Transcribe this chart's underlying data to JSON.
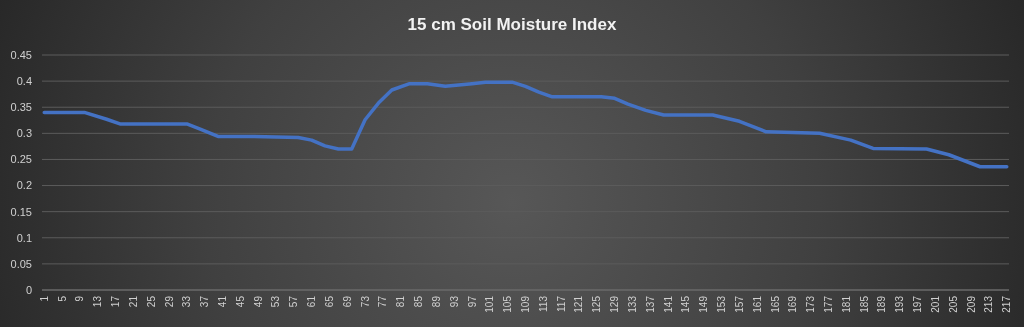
{
  "chart_data": {
    "type": "line",
    "title": "15 cm Soil Moisture Index",
    "x": [
      1,
      10,
      15,
      18,
      33,
      36,
      40,
      48,
      58,
      61,
      64,
      67,
      70,
      73,
      76,
      79,
      83,
      87,
      91,
      97,
      100,
      106,
      109,
      112,
      115,
      126,
      129,
      132,
      136,
      140,
      151,
      157,
      163,
      175,
      182,
      187,
      199,
      204,
      211,
      217
    ],
    "series": [
      {
        "color": "#4472c4",
        "values": [
          0.34,
          0.34,
          0.327,
          0.318,
          0.318,
          0.308,
          0.294,
          0.294,
          0.292,
          0.287,
          0.276,
          0.27,
          0.27,
          0.326,
          0.358,
          0.383,
          0.395,
          0.395,
          0.39,
          0.395,
          0.398,
          0.398,
          0.39,
          0.379,
          0.37,
          0.37,
          0.367,
          0.356,
          0.344,
          0.335,
          0.335,
          0.323,
          0.303,
          0.3,
          0.287,
          0.271,
          0.27,
          0.259,
          0.236,
          0.236
        ]
      }
    ],
    "xlim": [
      0.5,
      217.5
    ],
    "xticks": [
      1,
      5,
      9,
      13,
      17,
      21,
      25,
      29,
      33,
      37,
      41,
      45,
      49,
      53,
      57,
      61,
      65,
      69,
      73,
      77,
      81,
      85,
      89,
      93,
      97,
      101,
      105,
      109,
      113,
      117,
      121,
      125,
      129,
      133,
      137,
      141,
      145,
      149,
      153,
      157,
      161,
      165,
      169,
      173,
      177,
      181,
      185,
      189,
      193,
      197,
      201,
      205,
      209,
      213,
      217
    ],
    "ylim": [
      0,
      0.45
    ],
    "yticks": [
      0,
      0.05,
      0.1,
      0.15,
      0.2,
      0.25,
      0.3,
      0.35,
      0.4,
      0.45
    ],
    "grid": "y",
    "marker": "none",
    "line_style": "solid"
  }
}
